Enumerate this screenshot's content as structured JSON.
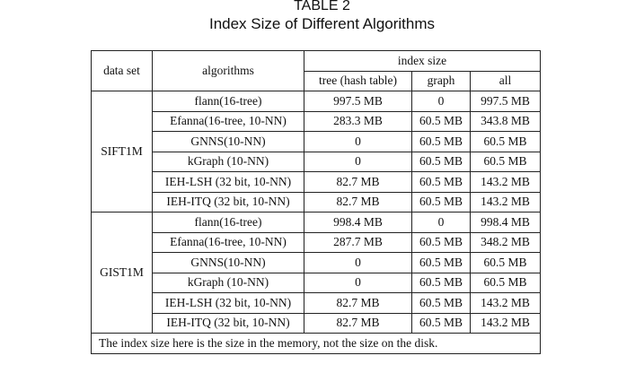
{
  "caption": {
    "label": "TABLE 2",
    "title": "Index Size of Different Algorithms"
  },
  "table": {
    "headers": {
      "dataset": "data set",
      "algorithms": "algorithms",
      "index_size": "index size",
      "tree": "tree (hash table)",
      "graph": "graph",
      "all": "all"
    },
    "groups": [
      {
        "dataset": "SIFT1M",
        "rows": [
          {
            "algorithm": "flann(16-tree)",
            "tree": "997.5 MB",
            "graph": "0",
            "all": "997.5 MB"
          },
          {
            "algorithm": "Efanna(16-tree, 10-NN)",
            "tree": "283.3 MB",
            "graph": "60.5 MB",
            "all": "343.8 MB"
          },
          {
            "algorithm": "GNNS(10-NN)",
            "tree": "0",
            "graph": "60.5 MB",
            "all": "60.5 MB"
          },
          {
            "algorithm": "kGraph (10-NN)",
            "tree": "0",
            "graph": "60.5 MB",
            "all": "60.5 MB"
          },
          {
            "algorithm": "IEH-LSH (32 bit, 10-NN)",
            "tree": "82.7 MB",
            "graph": "60.5 MB",
            "all": "143.2 MB"
          },
          {
            "algorithm": "IEH-ITQ (32 bit, 10-NN)",
            "tree": "82.7 MB",
            "graph": "60.5 MB",
            "all": "143.2 MB"
          }
        ]
      },
      {
        "dataset": "GIST1M",
        "rows": [
          {
            "algorithm": "flann(16-tree)",
            "tree": "998.4 MB",
            "graph": "0",
            "all": "998.4 MB"
          },
          {
            "algorithm": "Efanna(16-tree, 10-NN)",
            "tree": "287.7 MB",
            "graph": "60.5 MB",
            "all": "348.2 MB"
          },
          {
            "algorithm": "GNNS(10-NN)",
            "tree": "0",
            "graph": "60.5 MB",
            "all": "60.5 MB"
          },
          {
            "algorithm": "kGraph (10-NN)",
            "tree": "0",
            "graph": "60.5 MB",
            "all": "60.5 MB"
          },
          {
            "algorithm": "IEH-LSH (32 bit, 10-NN)",
            "tree": "82.7 MB",
            "graph": "60.5 MB",
            "all": "143.2 MB"
          },
          {
            "algorithm": "IEH-ITQ (32 bit, 10-NN)",
            "tree": "82.7 MB",
            "graph": "60.5 MB",
            "all": "143.2 MB"
          }
        ]
      }
    ],
    "footnote": "The index size here is the size in the memory, not the size on the disk."
  }
}
